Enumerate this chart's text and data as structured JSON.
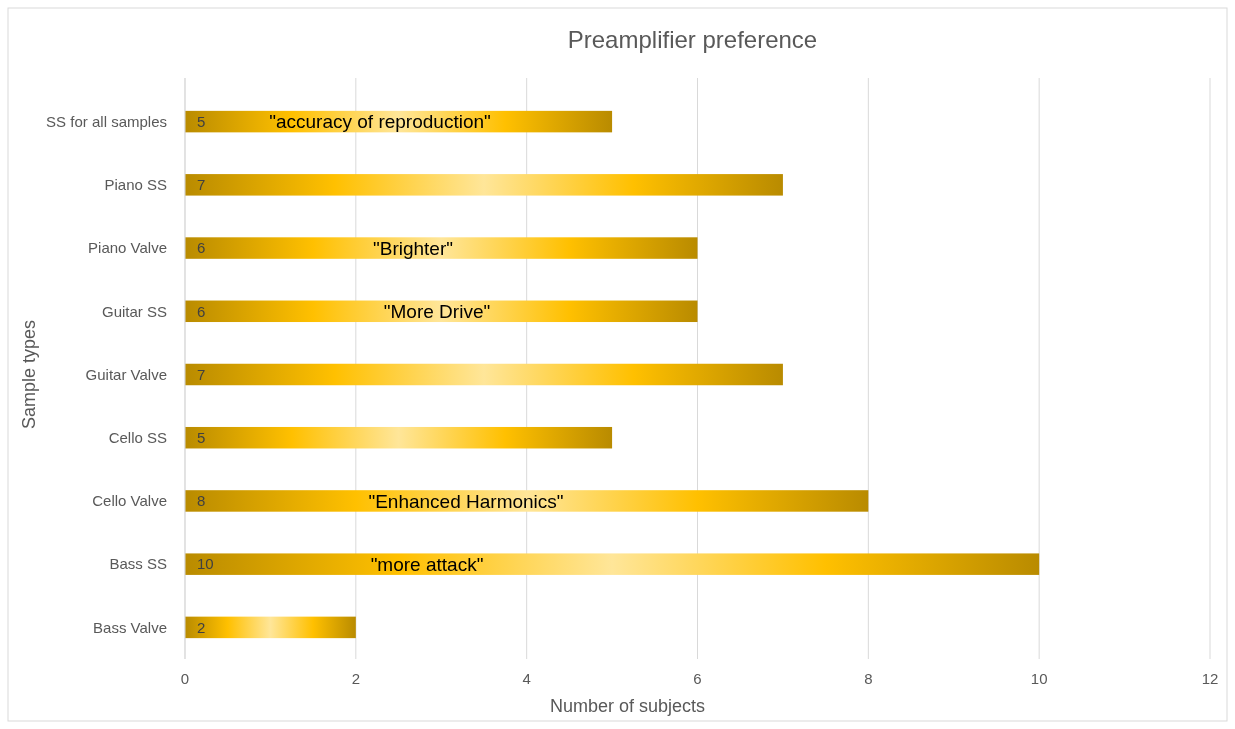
{
  "chart_data": {
    "type": "bar",
    "orientation": "horizontal",
    "title": "Preamplifier preference",
    "xlabel": "Number of subjects",
    "ylabel": "Sample  types",
    "categories": [
      "SS for all samples",
      "Piano SS",
      "Piano Valve",
      "Guitar SS",
      "Guitar Valve",
      "Cello SS",
      "Cello Valve",
      "Bass SS",
      "Bass Valve"
    ],
    "values": [
      5,
      7,
      6,
      6,
      7,
      5,
      8,
      10,
      2
    ],
    "color": "#ffc000",
    "xlim": [
      0,
      12
    ],
    "xticks": [
      0,
      2,
      4,
      6,
      8,
      10,
      12
    ],
    "grid": "x",
    "data_labels": true,
    "annotations": [
      "\"accuracy of reproduction\"",
      "\"Brighter\"",
      "\"More Drive\"",
      "\"Enhanced Harmonics\"",
      "\"more attack\""
    ]
  }
}
